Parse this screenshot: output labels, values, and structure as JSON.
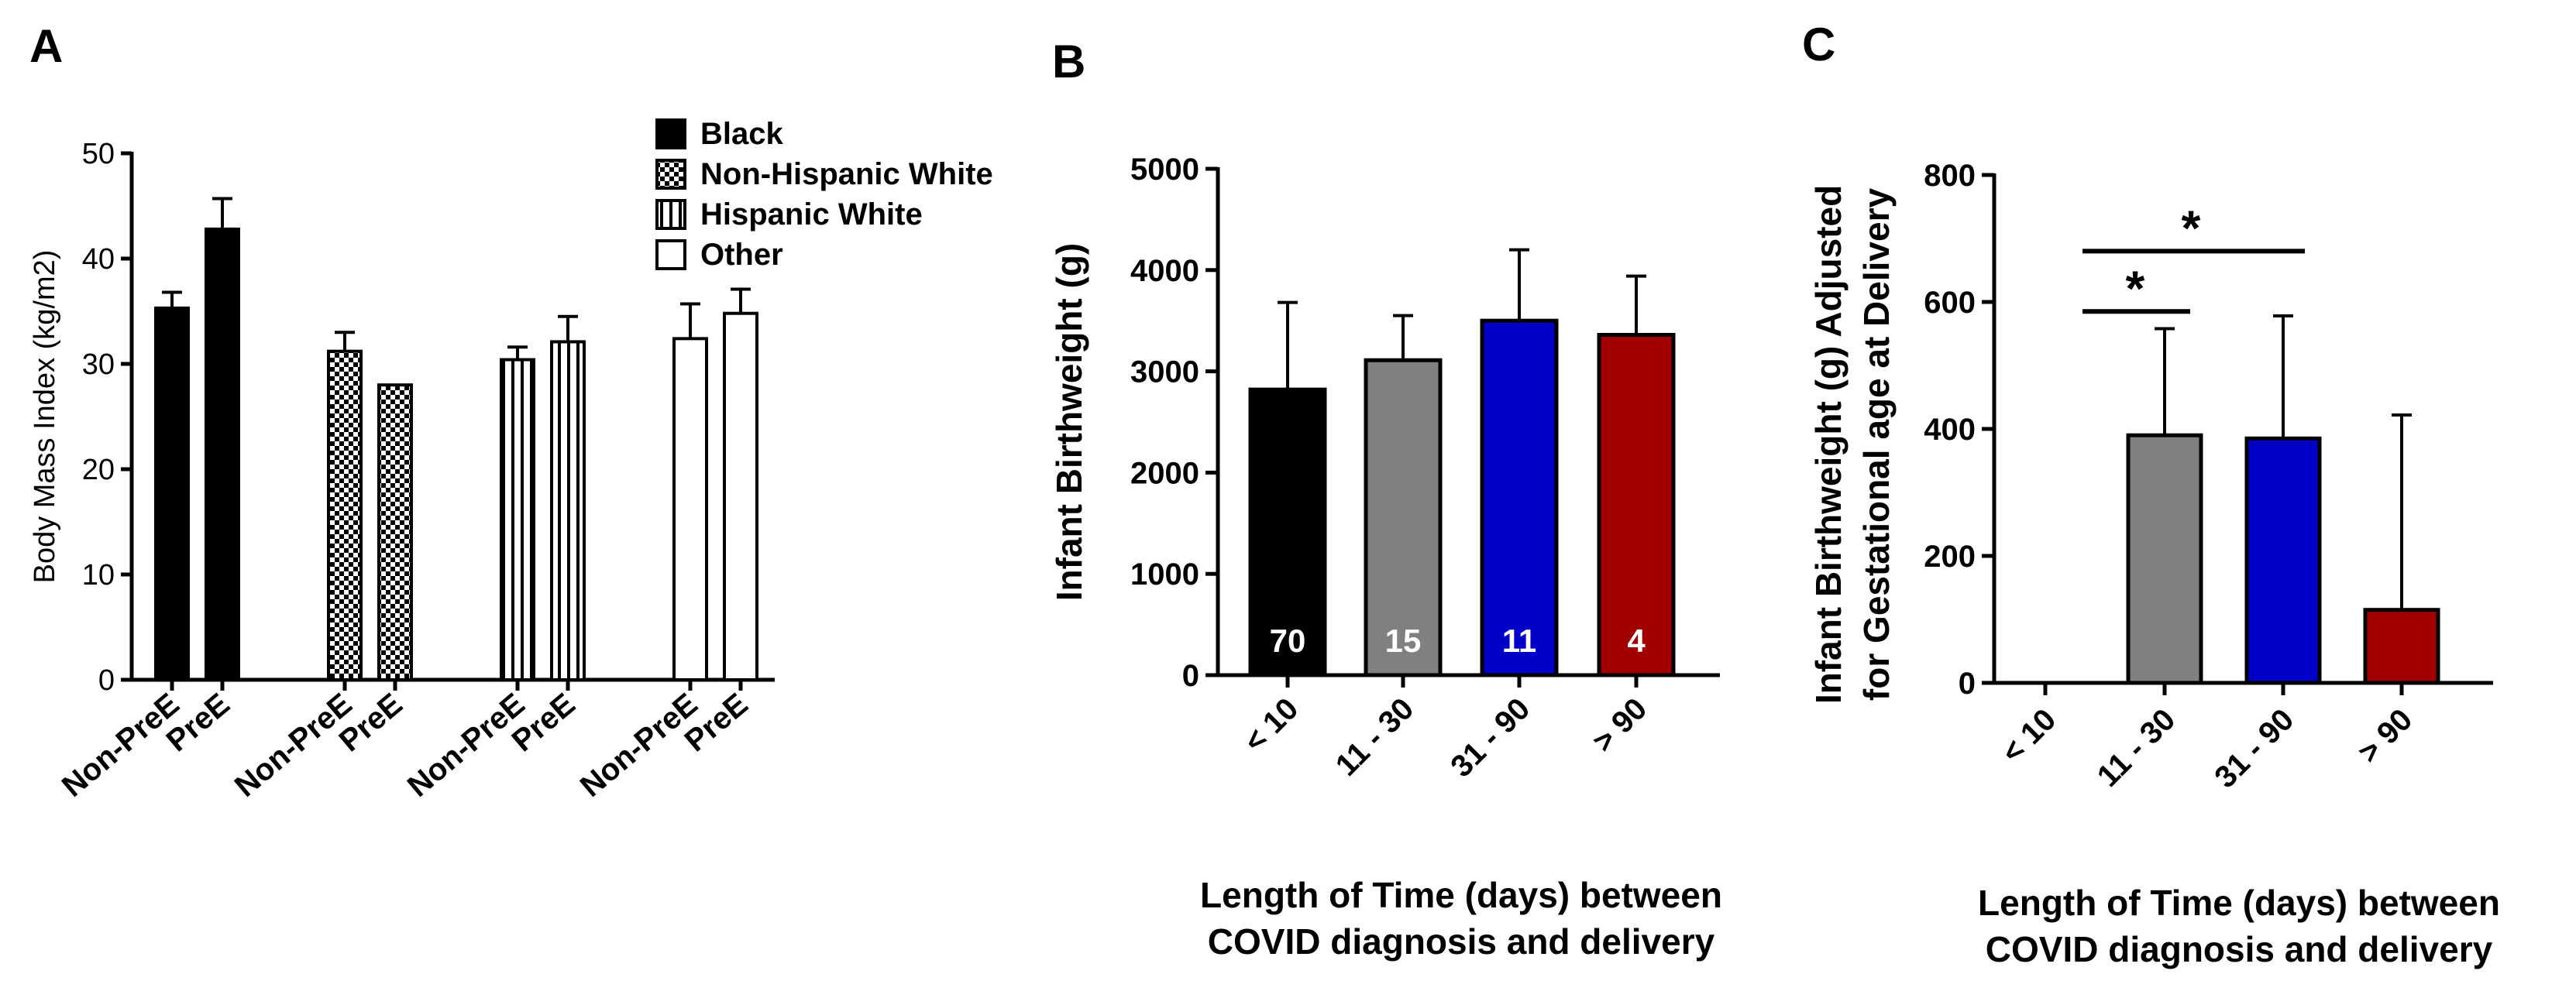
{
  "chart_data": [
    {
      "panel": "A",
      "type": "bar",
      "ylabel": "Body Mass Index (kg/m2)",
      "ylim": [
        0,
        50
      ],
      "yticks": [
        "0",
        "10",
        "20",
        "30",
        "40",
        "50"
      ],
      "groups": [
        "Black",
        "Non-Hispanic White",
        "Hispanic White",
        "Other"
      ],
      "categories": [
        "Non-PreE",
        "PreE"
      ],
      "legend": [
        {
          "label": "Black",
          "pattern": "solid"
        },
        {
          "label": "Non-Hispanic White",
          "pattern": "checker"
        },
        {
          "label": "Hispanic White",
          "pattern": "vertical"
        },
        {
          "label": "Other",
          "pattern": "open"
        }
      ],
      "series": [
        {
          "name": "Black",
          "values": [
            35.3,
            42.8
          ],
          "errors": [
            1.5,
            2.9
          ]
        },
        {
          "name": "Non-Hispanic White",
          "values": [
            31.2,
            28.0
          ],
          "errors": [
            1.8,
            0
          ]
        },
        {
          "name": "Hispanic White",
          "values": [
            30.4,
            32.1
          ],
          "errors": [
            1.2,
            2.4
          ]
        },
        {
          "name": "Other",
          "values": [
            32.4,
            34.8
          ],
          "errors": [
            3.3,
            2.3
          ]
        }
      ]
    },
    {
      "panel": "B",
      "type": "bar",
      "ylabel": "Infant Birthweight (g)",
      "xlabel_line1": "Length of Time (days) between",
      "xlabel_line2": "COVID diagnosis and delivery",
      "ylim": [
        0,
        5000
      ],
      "yticks": [
        "0",
        "1000",
        "2000",
        "3000",
        "4000",
        "5000"
      ],
      "categories": [
        "< 10",
        "11 - 30",
        "31 - 90",
        "> 90"
      ],
      "values": [
        2820,
        3110,
        3500,
        3360
      ],
      "errors": [
        860,
        440,
        700,
        580
      ],
      "n_labels": [
        "70",
        "15",
        "11",
        "4"
      ],
      "colors": [
        "#000000",
        "#808080",
        "#0000c8",
        "#a00000"
      ]
    },
    {
      "panel": "C",
      "type": "bar",
      "ylabel_line1": "Infant Birthweight (g) Adjusted",
      "ylabel_line2": "for Gestational age at Delivery",
      "xlabel_line1": "Length of Time (days) between",
      "xlabel_line2": "COVID diagnosis and delivery",
      "ylim": [
        0,
        800
      ],
      "yticks": [
        "0",
        "200",
        "400",
        "600",
        "800"
      ],
      "categories": [
        "< 10",
        "11 - 30",
        "31 - 90",
        "> 90"
      ],
      "values": [
        0,
        390,
        385,
        115
      ],
      "errors": [
        0,
        168,
        193,
        307
      ],
      "colors": [
        "#000000",
        "#808080",
        "#0000c8",
        "#a00000"
      ],
      "significance": [
        {
          "from": "< 10",
          "to": "11 - 30",
          "y": 585,
          "label": "*"
        },
        {
          "from": "< 10",
          "to": "31 - 90",
          "y": 680,
          "label": "*"
        }
      ]
    }
  ]
}
